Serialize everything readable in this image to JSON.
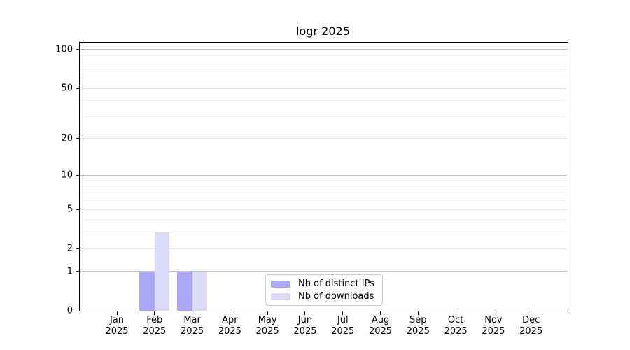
{
  "figure": {
    "background": "#ffffff"
  },
  "chart_data": {
    "type": "bar",
    "title": "logr 2025",
    "x_categories": [
      "Jan",
      "Feb",
      "Mar",
      "Apr",
      "May",
      "Jun",
      "Jul",
      "Aug",
      "Sep",
      "Oct",
      "Nov",
      "Dec"
    ],
    "x_year_line": "2025",
    "series": [
      {
        "name": "Nb of distinct IPs",
        "color": "#a9a9f7",
        "values": [
          0,
          1,
          1,
          0,
          0,
          0,
          0,
          0,
          0,
          0,
          0,
          0
        ]
      },
      {
        "name": "Nb of downloads",
        "color": "#dcdcf8",
        "values": [
          0,
          3,
          1,
          0,
          0,
          0,
          0,
          0,
          0,
          0,
          0,
          0
        ]
      }
    ],
    "yscale": "log1p",
    "ylim": [
      0,
      113
    ],
    "yticks": [
      0,
      1,
      2,
      5,
      10,
      20,
      50,
      100
    ],
    "yticks_minor": [
      3,
      4,
      6,
      7,
      8,
      9,
      30,
      40,
      60,
      70,
      80,
      90
    ],
    "grid": {
      "orientation": "horizontal",
      "decade_values": [
        1,
        10,
        100
      ],
      "decade_color": "#c6c6c6",
      "major_color": "#e8e8e8",
      "minor_color": "#f2f2f2"
    },
    "bar_group_fraction": 0.8,
    "axis_color": "#000000",
    "legend": {
      "position": "lower center",
      "border_color": "#cccccc",
      "background": "#ffffff"
    }
  }
}
